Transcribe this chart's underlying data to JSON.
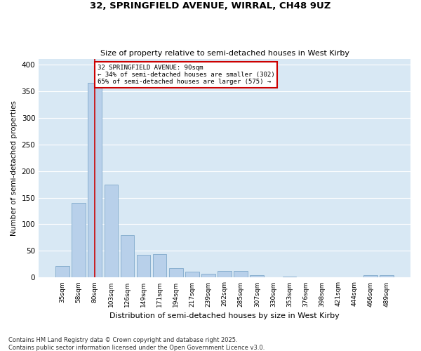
{
  "title_line1": "32, SPRINGFIELD AVENUE, WIRRAL, CH48 9UZ",
  "title_line2": "Size of property relative to semi-detached houses in West Kirby",
  "xlabel": "Distribution of semi-detached houses by size in West Kirby",
  "ylabel": "Number of semi-detached properties",
  "bar_labels": [
    "35sqm",
    "58sqm",
    "80sqm",
    "103sqm",
    "126sqm",
    "149sqm",
    "171sqm",
    "194sqm",
    "217sqm",
    "239sqm",
    "262sqm",
    "285sqm",
    "307sqm",
    "330sqm",
    "353sqm",
    "376sqm",
    "398sqm",
    "421sqm",
    "444sqm",
    "466sqm",
    "489sqm"
  ],
  "bar_values": [
    22,
    140,
    365,
    175,
    80,
    43,
    44,
    18,
    11,
    7,
    13,
    13,
    5,
    0,
    2,
    0,
    0,
    0,
    0,
    5,
    4
  ],
  "bar_color": "#b8d0ea",
  "bar_edge_color": "#8ab0d0",
  "vline_x_index": 2,
  "vline_color": "#cc0000",
  "annotation_text_line1": "32 SPRINGFIELD AVENUE: 90sqm",
  "annotation_text_line2": "← 34% of semi-detached houses are smaller (302)",
  "annotation_text_line3": "65% of semi-detached houses are larger (575) →",
  "annotation_box_facecolor": "#ffffff",
  "annotation_box_edgecolor": "#cc0000",
  "ylim": [
    0,
    410
  ],
  "yticks": [
    0,
    50,
    100,
    150,
    200,
    250,
    300,
    350,
    400
  ],
  "grid_color": "#ffffff",
  "bg_color": "#d8e8f4",
  "fig_facecolor": "#ffffff",
  "footer_line1": "Contains HM Land Registry data © Crown copyright and database right 2025.",
  "footer_line2": "Contains public sector information licensed under the Open Government Licence v3.0."
}
